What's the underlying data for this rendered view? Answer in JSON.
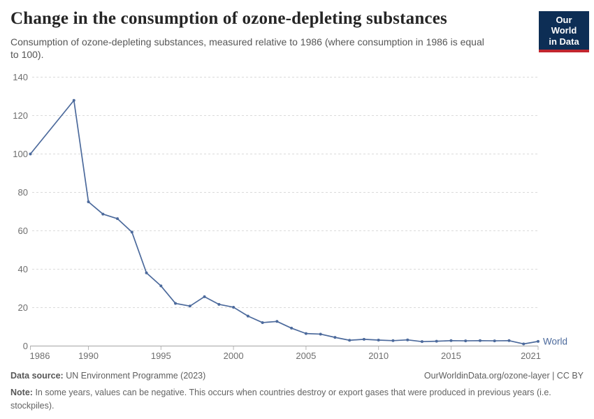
{
  "header": {
    "title": "Change in the consumption of ozone-depleting substances",
    "subtitle": "Consumption of ozone-depleting substances, measured relative to 1986 (where consumption in 1986 is equal to 100).",
    "logo": {
      "line1": "Our World",
      "line2": "in Data",
      "bg_color": "#0d2e55",
      "stripe_color": "#c2262e",
      "text_color": "#ffffff"
    }
  },
  "chart_data": {
    "type": "line",
    "title": "Change in the consumption of ozone-depleting substances",
    "x": [
      1986,
      1989,
      1990,
      1991,
      1992,
      1993,
      1994,
      1995,
      1996,
      1997,
      1998,
      1999,
      2000,
      2001,
      2002,
      2003,
      2004,
      2005,
      2006,
      2007,
      2008,
      2009,
      2010,
      2011,
      2012,
      2013,
      2014,
      2015,
      2016,
      2017,
      2018,
      2019,
      2020,
      2021
    ],
    "series": [
      {
        "name": "World",
        "color": "#4c6a9c",
        "values": [
          100,
          127.9,
          75.1,
          68.7,
          66.3,
          59.3,
          38.1,
          31.3,
          22.2,
          20.8,
          25.7,
          21.7,
          20.2,
          15.6,
          12.2,
          12.8,
          9.3,
          6.5,
          6.2,
          4.5,
          3.0,
          3.5,
          3.1,
          2.8,
          3.2,
          2.3,
          2.5,
          2.8,
          2.7,
          2.8,
          2.7,
          2.8,
          1.1,
          2.4
        ]
      }
    ],
    "xlabel": "",
    "ylabel": "",
    "xlim": [
      1986,
      2021
    ],
    "ylim": [
      0,
      140
    ],
    "yticks": [
      0,
      20,
      40,
      60,
      80,
      100,
      120,
      140
    ],
    "xtick_labels": [
      1986,
      1990,
      1995,
      2000,
      2005,
      2010,
      2015,
      2021
    ],
    "grid": "horizontal-dashed",
    "grid_color": "#dadada",
    "axis_color": "#a3a3a3",
    "tick_color": "#b5b5b5",
    "tick_label_color": "#6e6e6e",
    "legend_position": "end-of-line-label"
  },
  "footer": {
    "datasource_label": "Data source:",
    "datasource_value": "UN Environment Programme (2023)",
    "link": "OurWorldinData.org/ozone-layer | CC BY",
    "note_label": "Note:",
    "note_text": "In some years, values can be negative. This occurs when countries destroy or export gases that were produced in previous years (i.e. stockpiles)."
  }
}
